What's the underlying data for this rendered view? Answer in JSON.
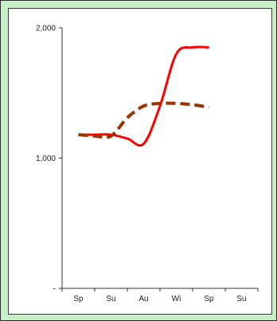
{
  "chart_data": {
    "type": "line",
    "title": "",
    "xlabel": "",
    "ylabel": "",
    "categories": [
      "Sp",
      "Su",
      "Au",
      "Wi",
      "Sp",
      "Su"
    ],
    "y_ticks": [
      {
        "value": 0,
        "label": "-"
      },
      {
        "value": 1000,
        "label": "1,000"
      },
      {
        "value": 2000,
        "label": "2,000"
      }
    ],
    "ylim": [
      0,
      2000
    ],
    "grid": false,
    "legend": "none",
    "series": [
      {
        "style": "solid",
        "color": "#ff0000",
        "points": [
          [
            0,
            1180
          ],
          [
            0.5,
            1180
          ],
          [
            1.0,
            1180
          ],
          [
            1.5,
            1150
          ],
          [
            2.0,
            1110
          ],
          [
            2.5,
            1400
          ],
          [
            3.0,
            1800
          ],
          [
            3.5,
            1850
          ],
          [
            4.0,
            1850
          ]
        ]
      },
      {
        "style": "dashed",
        "color": "#993300",
        "points": [
          [
            0,
            1180
          ],
          [
            0.5,
            1170
          ],
          [
            1.0,
            1170
          ],
          [
            1.5,
            1310
          ],
          [
            2.0,
            1400
          ],
          [
            2.5,
            1420
          ],
          [
            3.0,
            1420
          ],
          [
            3.5,
            1410
          ],
          [
            4.0,
            1390
          ]
        ]
      }
    ]
  }
}
